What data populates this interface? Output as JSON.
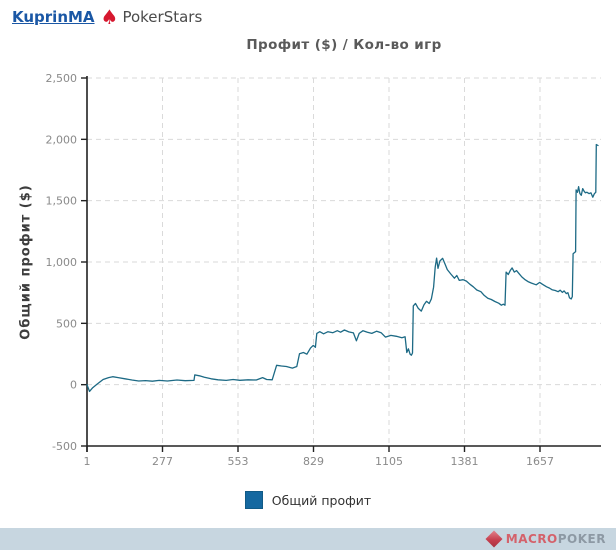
{
  "header": {
    "user_link": "KuprinMA",
    "site_label": "PokerStars"
  },
  "icons": {
    "pokerstars_logo": "spade-icon",
    "macropoker_logo": "diamond-icon"
  },
  "chart_data": {
    "type": "line",
    "title": "Профит ($) / Кол-во игр",
    "ylabel": "Общий профит ($)",
    "xlabel": "",
    "xlim": [
      1,
      1880
    ],
    "ylim": [
      -500,
      2500
    ],
    "x_ticks": [
      1,
      277,
      553,
      829,
      1105,
      1381,
      1657
    ],
    "y_ticks": [
      -500,
      0,
      500,
      1000,
      1500,
      2000,
      2500
    ],
    "grid": "dashed, both axes",
    "legend_position": "bottom center",
    "colors": {
      "line": "#1d6a85",
      "legend_swatch": "#1568a0",
      "grid": "#dadada",
      "axis": "#222222",
      "tick_label": "#8a8a8a",
      "title": "#5a5a5a"
    },
    "legend": [
      {
        "label": "Общий профит"
      }
    ],
    "series": [
      {
        "name": "Общий профит",
        "points": [
          [
            1,
            0
          ],
          [
            10,
            -55
          ],
          [
            22,
            -25
          ],
          [
            38,
            5
          ],
          [
            60,
            42
          ],
          [
            80,
            58
          ],
          [
            95,
            65
          ],
          [
            115,
            58
          ],
          [
            140,
            48
          ],
          [
            165,
            38
          ],
          [
            190,
            30
          ],
          [
            215,
            33
          ],
          [
            240,
            28
          ],
          [
            265,
            35
          ],
          [
            295,
            30
          ],
          [
            330,
            38
          ],
          [
            360,
            32
          ],
          [
            392,
            35
          ],
          [
            395,
            80
          ],
          [
            412,
            72
          ],
          [
            430,
            60
          ],
          [
            455,
            48
          ],
          [
            480,
            40
          ],
          [
            510,
            35
          ],
          [
            535,
            42
          ],
          [
            560,
            36
          ],
          [
            590,
            40
          ],
          [
            620,
            38
          ],
          [
            643,
            58
          ],
          [
            658,
            42
          ],
          [
            678,
            40
          ],
          [
            694,
            158
          ],
          [
            712,
            152
          ],
          [
            730,
            148
          ],
          [
            752,
            135
          ],
          [
            768,
            148
          ],
          [
            778,
            252
          ],
          [
            792,
            262
          ],
          [
            805,
            248
          ],
          [
            818,
            298
          ],
          [
            828,
            320
          ],
          [
            836,
            305
          ],
          [
            841,
            418
          ],
          [
            852,
            432
          ],
          [
            866,
            415
          ],
          [
            882,
            432
          ],
          [
            900,
            424
          ],
          [
            916,
            440
          ],
          [
            928,
            428
          ],
          [
            942,
            446
          ],
          [
            958,
            430
          ],
          [
            975,
            422
          ],
          [
            986,
            358
          ],
          [
            996,
            418
          ],
          [
            1010,
            440
          ],
          [
            1026,
            428
          ],
          [
            1042,
            418
          ],
          [
            1060,
            436
          ],
          [
            1076,
            424
          ],
          [
            1092,
            388
          ],
          [
            1112,
            402
          ],
          [
            1132,
            394
          ],
          [
            1152,
            382
          ],
          [
            1164,
            390
          ],
          [
            1170,
            262
          ],
          [
            1176,
            292
          ],
          [
            1182,
            248
          ],
          [
            1187,
            240
          ],
          [
            1191,
            258
          ],
          [
            1194,
            642
          ],
          [
            1202,
            662
          ],
          [
            1212,
            622
          ],
          [
            1223,
            600
          ],
          [
            1233,
            652
          ],
          [
            1242,
            680
          ],
          [
            1252,
            662
          ],
          [
            1260,
            700
          ],
          [
            1268,
            795
          ],
          [
            1274,
            958
          ],
          [
            1279,
            1032
          ],
          [
            1284,
            948
          ],
          [
            1291,
            1008
          ],
          [
            1301,
            1030
          ],
          [
            1309,
            988
          ],
          [
            1318,
            938
          ],
          [
            1331,
            902
          ],
          [
            1344,
            868
          ],
          [
            1353,
            890
          ],
          [
            1362,
            850
          ],
          [
            1376,
            856
          ],
          [
            1388,
            844
          ],
          [
            1401,
            818
          ],
          [
            1413,
            798
          ],
          [
            1426,
            772
          ],
          [
            1441,
            758
          ],
          [
            1453,
            728
          ],
          [
            1466,
            704
          ],
          [
            1479,
            694
          ],
          [
            1492,
            678
          ],
          [
            1506,
            664
          ],
          [
            1516,
            648
          ],
          [
            1523,
            656
          ],
          [
            1529,
            648
          ],
          [
            1533,
            918
          ],
          [
            1541,
            898
          ],
          [
            1549,
            934
          ],
          [
            1555,
            952
          ],
          [
            1563,
            918
          ],
          [
            1571,
            930
          ],
          [
            1581,
            904
          ],
          [
            1591,
            878
          ],
          [
            1601,
            858
          ],
          [
            1613,
            840
          ],
          [
            1626,
            828
          ],
          [
            1643,
            814
          ],
          [
            1656,
            834
          ],
          [
            1666,
            818
          ],
          [
            1681,
            798
          ],
          [
            1691,
            788
          ],
          [
            1701,
            774
          ],
          [
            1713,
            768
          ],
          [
            1723,
            758
          ],
          [
            1731,
            770
          ],
          [
            1739,
            752
          ],
          [
            1745,
            764
          ],
          [
            1753,
            742
          ],
          [
            1759,
            750
          ],
          [
            1765,
            708
          ],
          [
            1771,
            698
          ],
          [
            1775,
            718
          ],
          [
            1778,
            1068
          ],
          [
            1784,
            1078
          ],
          [
            1787,
            1084
          ],
          [
            1789,
            1588
          ],
          [
            1794,
            1568
          ],
          [
            1798,
            1614
          ],
          [
            1803,
            1558
          ],
          [
            1808,
            1544
          ],
          [
            1813,
            1598
          ],
          [
            1818,
            1578
          ],
          [
            1823,
            1564
          ],
          [
            1829,
            1568
          ],
          [
            1836,
            1558
          ],
          [
            1843,
            1564
          ],
          [
            1850,
            1528
          ],
          [
            1856,
            1558
          ],
          [
            1861,
            1568
          ],
          [
            1863,
            1958
          ],
          [
            1869,
            1950
          ]
        ]
      }
    ]
  },
  "footer": {
    "brand_macro": "MACRO",
    "brand_poker": "POKER"
  }
}
